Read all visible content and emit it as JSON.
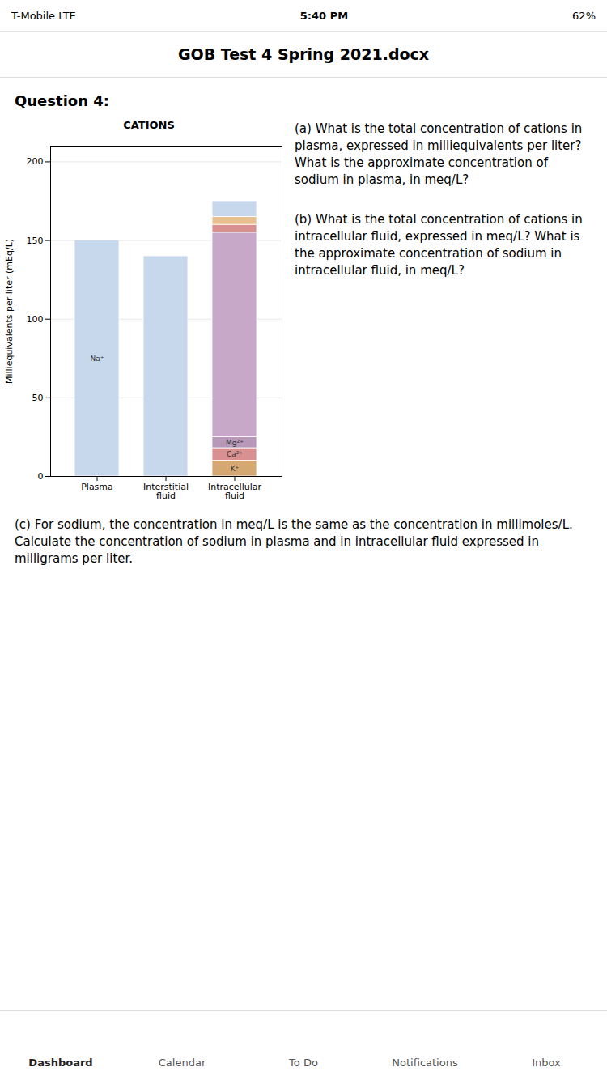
{
  "chart_data": {
    "type": "bar",
    "stacked": true,
    "title": "CATIONS",
    "ylabel": "Milliequivalents per liter (mEq/L)",
    "categories": [
      "Plasma",
      "Interstitial\nfluid",
      "Intracellular\nfluid"
    ],
    "series": [
      {
        "name": "Na⁺",
        "color": "#c8d8ec",
        "values": [
          150,
          140,
          null
        ]
      },
      {
        "name": "K⁺",
        "color": "#d4a870",
        "values": [
          null,
          null,
          10
        ]
      },
      {
        "name": "Ca²⁺",
        "color": "#d89090",
        "values": [
          null,
          null,
          8
        ]
      },
      {
        "name": "Mg²⁺",
        "color": "#b898b8",
        "values": [
          null,
          null,
          7
        ]
      },
      {
        "color": "#c8a8c8",
        "values": [
          null,
          null,
          130
        ]
      },
      {
        "color": "#d89090",
        "values": [
          null,
          null,
          5
        ]
      },
      {
        "color": "#e8c090",
        "values": [
          null,
          null,
          5
        ]
      },
      {
        "color": "#c8d8ec",
        "values": [
          null,
          null,
          10
        ]
      }
    ],
    "ylim": [
      0,
      210
    ],
    "yticks": [
      0,
      50,
      100,
      150,
      200
    ],
    "grid": true,
    "annotations": [
      "T-Mobile  LTE",
      "5:40 PM",
      "62%",
      "GOB Test 4 Spring 2021.docx",
      "Question 4:",
      "(a) What is the total concentration of cations in plasma, expressed in milliequivalents per liter? What is the approximate concentration of sodium in plasma, in meq/L?",
      "(b) What is the total concentration of cations in intracellular fluid, expressed in meq/L? What is the approximate concentration of sodium in intracellular fluid, in meq/L?",
      "(c) For sodium, the concentration in meq/L is the same as the concentration in millimoles/L. Calculate the concentration of sodium in plasma and in intracellular fluid expressed in milligrams per liter.",
      "Dashboard",
      "Calendar",
      "To Do",
      "Notifications",
      "Inbox"
    ]
  }
}
